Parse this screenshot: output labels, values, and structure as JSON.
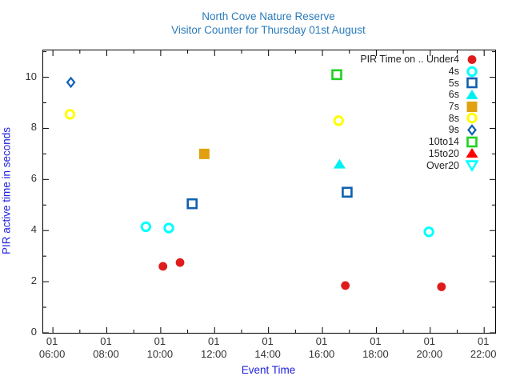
{
  "title": {
    "line1": "North Cove Nature Reserve",
    "line2": "Visitor Counter for Thursday 01st August"
  },
  "chart_data": {
    "type": "scatter",
    "title": "North Cove Nature Reserve",
    "subtitle": "Visitor Counter for Thursday 01st August",
    "xlabel": "Event Time",
    "ylabel": "PIR active time in seconds",
    "x_date_label": "01",
    "x_tick_times": [
      "06:00",
      "08:00",
      "10:00",
      "12:00",
      "14:00",
      "16:00",
      "18:00",
      "20:00",
      "22:00"
    ],
    "x_minor_interval_hours": 1,
    "x_range_hours": [
      5.64,
      22.41
    ],
    "y_ticks": [
      0,
      2,
      4,
      6,
      8,
      10
    ],
    "y_minor_interval": 1,
    "y_range": [
      0,
      11.05
    ],
    "grid": false,
    "legend_position": "top-right",
    "series": [
      {
        "name": "PIR Time on .. Under4",
        "marker": "circle-filled",
        "color": "#df1b1b",
        "points": [
          {
            "time": "10:05",
            "value": 2.6
          },
          {
            "time": "10:43",
            "value": 2.75
          },
          {
            "time": "16:51",
            "value": 1.85
          },
          {
            "time": "20:25",
            "value": 1.8
          }
        ]
      },
      {
        "name": "4s",
        "marker": "circle-open",
        "color": "#00ffff",
        "points": [
          {
            "time": "09:27",
            "value": 4.15
          },
          {
            "time": "10:18",
            "value": 4.1
          },
          {
            "time": "19:57",
            "value": 3.95
          }
        ]
      },
      {
        "name": "5s",
        "marker": "square-open",
        "color": "#1060b0",
        "points": [
          {
            "time": "11:10",
            "value": 5.05
          },
          {
            "time": "16:55",
            "value": 5.5
          }
        ]
      },
      {
        "name": "6s",
        "marker": "triangle-up-filled",
        "color": "#00f0f0",
        "points": [
          {
            "time": "16:38",
            "value": 6.6
          }
        ]
      },
      {
        "name": "7s",
        "marker": "square-filled",
        "color": "#e0a010",
        "points": [
          {
            "time": "11:37",
            "value": 7.0
          }
        ]
      },
      {
        "name": "8s",
        "marker": "circle-open",
        "color": "#ffff00",
        "points": [
          {
            "time": "06:38",
            "value": 8.55
          },
          {
            "time": "16:36",
            "value": 8.3
          }
        ]
      },
      {
        "name": "9s",
        "marker": "diamond-open",
        "color": "#1060b0",
        "points": [
          {
            "time": "06:40",
            "value": 9.8
          }
        ]
      },
      {
        "name": "10to14",
        "marker": "square-open",
        "color": "#20d020",
        "points": [
          {
            "time": "16:32",
            "value": 10.1
          }
        ]
      },
      {
        "name": "15to20",
        "marker": "triangle-up-filled",
        "color": "#ff0000",
        "points": []
      },
      {
        "name": "Over20",
        "marker": "triangle-down-open",
        "color": "#00ffff",
        "points": []
      }
    ]
  },
  "colors": {
    "title_text": "#2b7bba",
    "axis_title_text": "#2121dd",
    "tick_label_text": "#333333",
    "axis_line": "#000000",
    "background": "#ffffff"
  }
}
